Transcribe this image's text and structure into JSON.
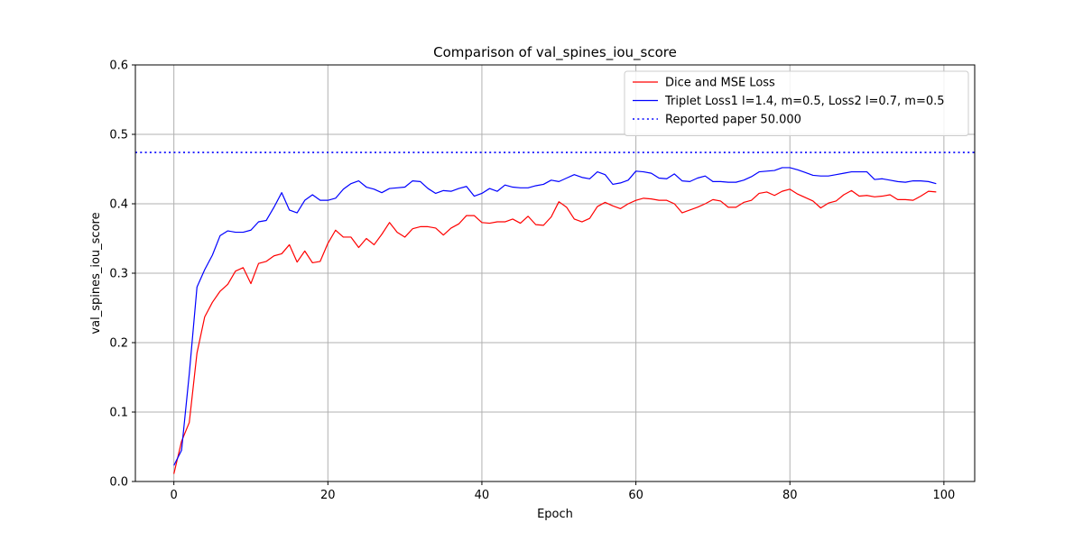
{
  "chart_data": {
    "type": "line",
    "title": "Comparison of val_spines_iou_score",
    "xlabel": "Epoch",
    "ylabel": "val_spines_iou_score",
    "xlim": [
      -5,
      104
    ],
    "ylim": [
      0,
      0.6
    ],
    "xticks": [
      0,
      20,
      40,
      60,
      80,
      100
    ],
    "yticks": [
      0.0,
      0.1,
      0.2,
      0.3,
      0.4,
      0.5,
      0.6
    ],
    "xtick_labels": [
      "0",
      "20",
      "40",
      "60",
      "80",
      "100"
    ],
    "ytick_labels": [
      "0.0",
      "0.1",
      "0.2",
      "0.3",
      "0.4",
      "0.5",
      "0.6"
    ],
    "grid": true,
    "legend_position": "top-right",
    "series": [
      {
        "name": "Dice and MSE Loss",
        "color": "#ff0000",
        "style": "solid",
        "x": [
          0,
          1,
          2,
          3,
          4,
          5,
          6,
          7,
          8,
          9,
          10,
          11,
          12,
          13,
          14,
          15,
          16,
          17,
          18,
          19,
          20,
          21,
          22,
          23,
          24,
          25,
          26,
          27,
          28,
          29,
          30,
          31,
          32,
          33,
          34,
          35,
          36,
          37,
          38,
          39,
          40,
          41,
          42,
          43,
          44,
          45,
          46,
          47,
          48,
          49,
          50,
          51,
          52,
          53,
          54,
          55,
          56,
          57,
          58,
          59,
          60,
          61,
          62,
          63,
          64,
          65,
          66,
          67,
          68,
          69,
          70,
          71,
          72,
          73,
          74,
          75,
          76,
          77,
          78,
          79,
          80,
          81,
          82,
          83,
          84,
          85,
          86,
          87,
          88,
          89,
          90,
          91,
          92,
          93,
          94,
          95,
          96,
          97,
          98,
          99
        ],
        "values": [
          0.011,
          0.058,
          0.085,
          0.185,
          0.237,
          0.258,
          0.274,
          0.284,
          0.303,
          0.308,
          0.285,
          0.314,
          0.317,
          0.325,
          0.328,
          0.341,
          0.316,
          0.332,
          0.315,
          0.317,
          0.343,
          0.362,
          0.352,
          0.352,
          0.337,
          0.35,
          0.341,
          0.356,
          0.373,
          0.359,
          0.352,
          0.364,
          0.367,
          0.367,
          0.365,
          0.355,
          0.365,
          0.371,
          0.383,
          0.383,
          0.373,
          0.372,
          0.374,
          0.374,
          0.378,
          0.372,
          0.382,
          0.37,
          0.369,
          0.381,
          0.403,
          0.395,
          0.378,
          0.374,
          0.379,
          0.396,
          0.402,
          0.397,
          0.393,
          0.4,
          0.405,
          0.408,
          0.407,
          0.405,
          0.405,
          0.4,
          0.387,
          0.391,
          0.395,
          0.4,
          0.406,
          0.404,
          0.395,
          0.395,
          0.402,
          0.405,
          0.415,
          0.417,
          0.412,
          0.418,
          0.421,
          0.414,
          0.409,
          0.404,
          0.394,
          0.401,
          0.404,
          0.413,
          0.419,
          0.411,
          0.412,
          0.41,
          0.411,
          0.413,
          0.406,
          0.406,
          0.405,
          0.411,
          0.418,
          0.417
        ]
      },
      {
        "name": "Triplet Loss1 l=1.4, m=0.5, Loss2 l=0.7, m=0.5",
        "color": "#0000ff",
        "style": "solid",
        "x": [
          0,
          1,
          2,
          3,
          4,
          5,
          6,
          7,
          8,
          9,
          10,
          11,
          12,
          13,
          14,
          15,
          16,
          17,
          18,
          19,
          20,
          21,
          22,
          23,
          24,
          25,
          26,
          27,
          28,
          29,
          30,
          31,
          32,
          33,
          34,
          35,
          36,
          37,
          38,
          39,
          40,
          41,
          42,
          43,
          44,
          45,
          46,
          47,
          48,
          49,
          50,
          51,
          52,
          53,
          54,
          55,
          56,
          57,
          58,
          59,
          60,
          61,
          62,
          63,
          64,
          65,
          66,
          67,
          68,
          69,
          70,
          71,
          72,
          73,
          74,
          75,
          76,
          77,
          78,
          79,
          80,
          81,
          82,
          83,
          84,
          85,
          86,
          87,
          88,
          89,
          90,
          91,
          92,
          93,
          94,
          95,
          96,
          97,
          98,
          99
        ],
        "values": [
          0.023,
          0.045,
          0.155,
          0.28,
          0.305,
          0.326,
          0.354,
          0.361,
          0.359,
          0.359,
          0.362,
          0.374,
          0.376,
          0.395,
          0.416,
          0.391,
          0.387,
          0.405,
          0.413,
          0.405,
          0.405,
          0.408,
          0.421,
          0.429,
          0.433,
          0.424,
          0.421,
          0.416,
          0.422,
          0.423,
          0.424,
          0.433,
          0.432,
          0.422,
          0.415,
          0.419,
          0.418,
          0.422,
          0.425,
          0.411,
          0.415,
          0.422,
          0.418,
          0.427,
          0.424,
          0.423,
          0.423,
          0.426,
          0.428,
          0.434,
          0.432,
          0.437,
          0.442,
          0.438,
          0.436,
          0.446,
          0.442,
          0.428,
          0.43,
          0.434,
          0.447,
          0.446,
          0.444,
          0.437,
          0.436,
          0.443,
          0.433,
          0.432,
          0.437,
          0.44,
          0.432,
          0.432,
          0.431,
          0.431,
          0.434,
          0.439,
          0.446,
          0.447,
          0.448,
          0.452,
          0.452,
          0.449,
          0.445,
          0.441,
          0.44,
          0.44,
          0.442,
          0.444,
          0.446,
          0.446,
          0.446,
          0.435,
          0.436,
          0.434,
          0.432,
          0.431,
          0.433,
          0.433,
          0.432,
          0.429
        ]
      },
      {
        "name": "Reported paper 50.000",
        "color": "#0000ff",
        "style": "dotted",
        "type": "hline",
        "y": 0.474
      }
    ]
  }
}
